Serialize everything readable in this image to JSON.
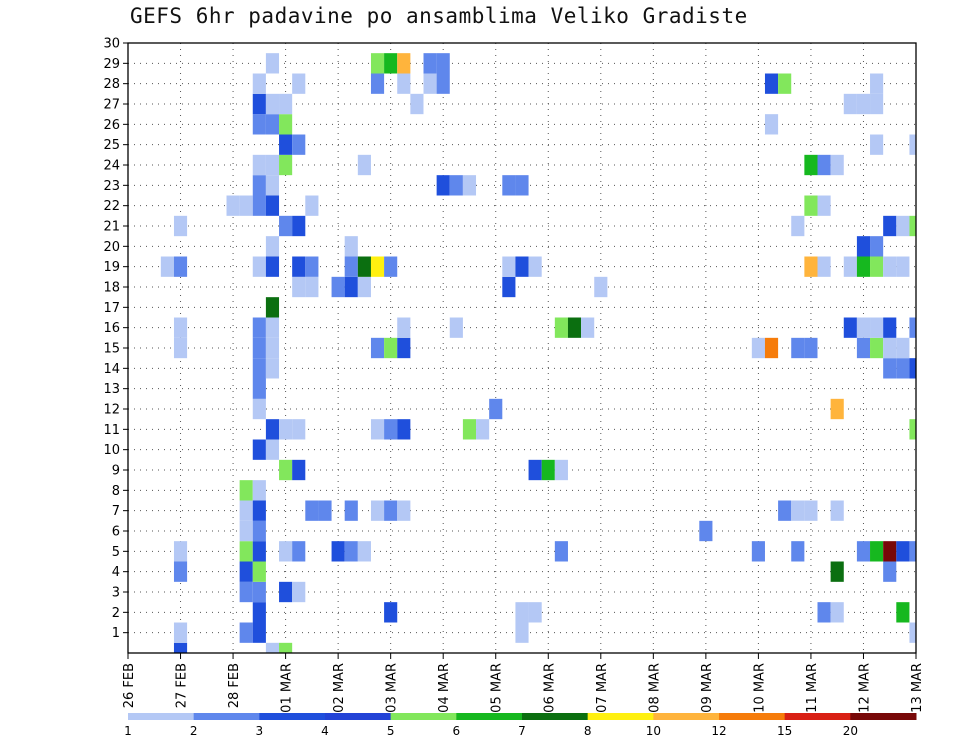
{
  "chart_data": {
    "type": "heatmap",
    "title": "GEFS 6hr padavine po ansamblima Veliko Gradiste",
    "x_tick_labels": [
      "26 FEB",
      "27 FEB",
      "28 FEB",
      "01 MAR",
      "02 MAR",
      "03 MAR",
      "04 MAR",
      "05 MAR",
      "06 MAR",
      "07 MAR",
      "08 MAR",
      "09 MAR",
      "10 MAR",
      "11 MAR",
      "12 MAR",
      "13 MAR"
    ],
    "y_tick_labels": [
      "1",
      "2",
      "3",
      "4",
      "5",
      "6",
      "7",
      "8",
      "9",
      "10",
      "11",
      "12",
      "13",
      "14",
      "15",
      "16",
      "17",
      "18",
      "19",
      "20",
      "21",
      "22",
      "23",
      "24",
      "25",
      "26",
      "27",
      "28",
      "29",
      "30"
    ],
    "xlim": [
      0,
      60
    ],
    "ylim": [
      0,
      30
    ],
    "grid": true,
    "legend_placement": "bottom",
    "colorbar": {
      "labels": [
        "1",
        "2",
        "3",
        "4",
        "5",
        "6",
        "7",
        "8",
        "10",
        "12",
        "15",
        "20"
      ],
      "colors": [
        "#b4c8f5",
        "#5f87ec",
        "#1f4fdc",
        "#2343d6",
        "#82e75c",
        "#16b81f",
        "#0b6f10",
        "#fff010",
        "#ffb43c",
        "#f67c0a",
        "#d92014",
        "#780808"
      ]
    },
    "cells": [
      {
        "x": 4,
        "y": 0,
        "v": 3
      },
      {
        "x": 11,
        "y": 0,
        "v": 1
      },
      {
        "x": 12,
        "y": 0,
        "v": 5
      },
      {
        "x": 4,
        "y": 1,
        "v": 1
      },
      {
        "x": 9,
        "y": 1,
        "v": 2
      },
      {
        "x": 10,
        "y": 1,
        "v": 3
      },
      {
        "x": 30,
        "y": 1,
        "v": 1
      },
      {
        "x": 60,
        "y": 1,
        "v": 1
      },
      {
        "x": 10,
        "y": 2,
        "v": 3
      },
      {
        "x": 20,
        "y": 2,
        "v": 3
      },
      {
        "x": 30,
        "y": 2,
        "v": 1
      },
      {
        "x": 31,
        "y": 2,
        "v": 1
      },
      {
        "x": 53,
        "y": 2,
        "v": 2
      },
      {
        "x": 54,
        "y": 2,
        "v": 1
      },
      {
        "x": 59,
        "y": 2,
        "v": 6
      },
      {
        "x": 9,
        "y": 3,
        "v": 2
      },
      {
        "x": 10,
        "y": 3,
        "v": 2
      },
      {
        "x": 12,
        "y": 3,
        "v": 3
      },
      {
        "x": 13,
        "y": 3,
        "v": 1
      },
      {
        "x": 4,
        "y": 4,
        "v": 2
      },
      {
        "x": 9,
        "y": 4,
        "v": 3
      },
      {
        "x": 10,
        "y": 4,
        "v": 5
      },
      {
        "x": 54,
        "y": 4,
        "v": 7
      },
      {
        "x": 58,
        "y": 4,
        "v": 2
      },
      {
        "x": 4,
        "y": 5,
        "v": 1
      },
      {
        "x": 9,
        "y": 5,
        "v": 5
      },
      {
        "x": 10,
        "y": 5,
        "v": 3
      },
      {
        "x": 12,
        "y": 5,
        "v": 1
      },
      {
        "x": 13,
        "y": 5,
        "v": 2
      },
      {
        "x": 16,
        "y": 5,
        "v": 3
      },
      {
        "x": 17,
        "y": 5,
        "v": 2
      },
      {
        "x": 18,
        "y": 5,
        "v": 1
      },
      {
        "x": 33,
        "y": 5,
        "v": 2
      },
      {
        "x": 48,
        "y": 5,
        "v": 2
      },
      {
        "x": 51,
        "y": 5,
        "v": 2
      },
      {
        "x": 56,
        "y": 5,
        "v": 2
      },
      {
        "x": 57,
        "y": 5,
        "v": 6
      },
      {
        "x": 58,
        "y": 5,
        "v": 20
      },
      {
        "x": 59,
        "y": 5,
        "v": 3
      },
      {
        "x": 60,
        "y": 5,
        "v": 2
      },
      {
        "x": 9,
        "y": 6,
        "v": 1
      },
      {
        "x": 10,
        "y": 6,
        "v": 2
      },
      {
        "x": 44,
        "y": 6,
        "v": 2
      },
      {
        "x": 9,
        "y": 7,
        "v": 1
      },
      {
        "x": 10,
        "y": 7,
        "v": 3
      },
      {
        "x": 14,
        "y": 7,
        "v": 2
      },
      {
        "x": 15,
        "y": 7,
        "v": 2
      },
      {
        "x": 17,
        "y": 7,
        "v": 2
      },
      {
        "x": 19,
        "y": 7,
        "v": 1
      },
      {
        "x": 20,
        "y": 7,
        "v": 2
      },
      {
        "x": 21,
        "y": 7,
        "v": 1
      },
      {
        "x": 50,
        "y": 7,
        "v": 2
      },
      {
        "x": 51,
        "y": 7,
        "v": 1
      },
      {
        "x": 52,
        "y": 7,
        "v": 1
      },
      {
        "x": 54,
        "y": 7,
        "v": 1
      },
      {
        "x": 9,
        "y": 8,
        "v": 5
      },
      {
        "x": 10,
        "y": 8,
        "v": 1
      },
      {
        "x": 12,
        "y": 9,
        "v": 5
      },
      {
        "x": 13,
        "y": 9,
        "v": 3
      },
      {
        "x": 31,
        "y": 9,
        "v": 3
      },
      {
        "x": 32,
        "y": 9,
        "v": 6
      },
      {
        "x": 33,
        "y": 9,
        "v": 1
      },
      {
        "x": 10,
        "y": 10,
        "v": 3
      },
      {
        "x": 11,
        "y": 10,
        "v": 1
      },
      {
        "x": 11,
        "y": 11,
        "v": 3
      },
      {
        "x": 12,
        "y": 11,
        "v": 1
      },
      {
        "x": 13,
        "y": 11,
        "v": 1
      },
      {
        "x": 19,
        "y": 11,
        "v": 1
      },
      {
        "x": 20,
        "y": 11,
        "v": 2
      },
      {
        "x": 21,
        "y": 11,
        "v": 3
      },
      {
        "x": 26,
        "y": 11,
        "v": 5
      },
      {
        "x": 27,
        "y": 11,
        "v": 1
      },
      {
        "x": 60,
        "y": 11,
        "v": 5
      },
      {
        "x": 10,
        "y": 12,
        "v": 1
      },
      {
        "x": 28,
        "y": 12,
        "v": 2
      },
      {
        "x": 54,
        "y": 12,
        "v": 10
      },
      {
        "x": 10,
        "y": 13,
        "v": 2
      },
      {
        "x": 10,
        "y": 14,
        "v": 2
      },
      {
        "x": 11,
        "y": 14,
        "v": 1
      },
      {
        "x": 58,
        "y": 14,
        "v": 2
      },
      {
        "x": 59,
        "y": 14,
        "v": 2
      },
      {
        "x": 60,
        "y": 14,
        "v": 3
      },
      {
        "x": 4,
        "y": 15,
        "v": 1
      },
      {
        "x": 10,
        "y": 15,
        "v": 2
      },
      {
        "x": 11,
        "y": 15,
        "v": 1
      },
      {
        "x": 19,
        "y": 15,
        "v": 2
      },
      {
        "x": 20,
        "y": 15,
        "v": 5
      },
      {
        "x": 21,
        "y": 15,
        "v": 3
      },
      {
        "x": 48,
        "y": 15,
        "v": 1
      },
      {
        "x": 49,
        "y": 15,
        "v": 12
      },
      {
        "x": 51,
        "y": 15,
        "v": 2
      },
      {
        "x": 52,
        "y": 15,
        "v": 2
      },
      {
        "x": 56,
        "y": 15,
        "v": 2
      },
      {
        "x": 57,
        "y": 15,
        "v": 5
      },
      {
        "x": 58,
        "y": 15,
        "v": 1
      },
      {
        "x": 59,
        "y": 15,
        "v": 1
      },
      {
        "x": 10,
        "y": 16,
        "v": 2
      },
      {
        "x": 11,
        "y": 16,
        "v": 1
      },
      {
        "x": 33,
        "y": 16,
        "v": 5
      },
      {
        "x": 34,
        "y": 16,
        "v": 7
      },
      {
        "x": 35,
        "y": 16,
        "v": 1
      },
      {
        "x": 55,
        "y": 16,
        "v": 3
      },
      {
        "x": 56,
        "y": 16,
        "v": 1
      },
      {
        "x": 57,
        "y": 16,
        "v": 1
      },
      {
        "x": 4,
        "y": 16,
        "v": 1
      },
      {
        "x": 21,
        "y": 16,
        "v": 1
      },
      {
        "x": 25,
        "y": 16,
        "v": 1
      },
      {
        "x": 58,
        "y": 16,
        "v": 3
      },
      {
        "x": 60,
        "y": 16,
        "v": 2
      },
      {
        "x": 11,
        "y": 17,
        "v": 7
      },
      {
        "x": 13,
        "y": 18,
        "v": 1
      },
      {
        "x": 14,
        "y": 18,
        "v": 1
      },
      {
        "x": 16,
        "y": 18,
        "v": 2
      },
      {
        "x": 17,
        "y": 18,
        "v": 3
      },
      {
        "x": 18,
        "y": 18,
        "v": 1
      },
      {
        "x": 29,
        "y": 18,
        "v": 3
      },
      {
        "x": 36,
        "y": 18,
        "v": 1
      },
      {
        "x": 3,
        "y": 19,
        "v": 1
      },
      {
        "x": 4,
        "y": 19,
        "v": 2
      },
      {
        "x": 10,
        "y": 19,
        "v": 1
      },
      {
        "x": 11,
        "y": 19,
        "v": 3
      },
      {
        "x": 13,
        "y": 19,
        "v": 3
      },
      {
        "x": 14,
        "y": 19,
        "v": 2
      },
      {
        "x": 17,
        "y": 19,
        "v": 2
      },
      {
        "x": 18,
        "y": 19,
        "v": 7
      },
      {
        "x": 19,
        "y": 19,
        "v": 8
      },
      {
        "x": 20,
        "y": 19,
        "v": 2
      },
      {
        "x": 29,
        "y": 19,
        "v": 1
      },
      {
        "x": 30,
        "y": 19,
        "v": 3
      },
      {
        "x": 31,
        "y": 19,
        "v": 1
      },
      {
        "x": 52,
        "y": 19,
        "v": 10
      },
      {
        "x": 53,
        "y": 19,
        "v": 1
      },
      {
        "x": 55,
        "y": 19,
        "v": 1
      },
      {
        "x": 56,
        "y": 19,
        "v": 6
      },
      {
        "x": 57,
        "y": 19,
        "v": 5
      },
      {
        "x": 58,
        "y": 19,
        "v": 1
      },
      {
        "x": 59,
        "y": 19,
        "v": 1
      },
      {
        "x": 11,
        "y": 20,
        "v": 1
      },
      {
        "x": 17,
        "y": 20,
        "v": 1
      },
      {
        "x": 56,
        "y": 20,
        "v": 3
      },
      {
        "x": 57,
        "y": 20,
        "v": 2
      },
      {
        "x": 4,
        "y": 21,
        "v": 1
      },
      {
        "x": 12,
        "y": 21,
        "v": 2
      },
      {
        "x": 13,
        "y": 21,
        "v": 3
      },
      {
        "x": 51,
        "y": 21,
        "v": 1
      },
      {
        "x": 58,
        "y": 21,
        "v": 3
      },
      {
        "x": 59,
        "y": 21,
        "v": 1
      },
      {
        "x": 60,
        "y": 21,
        "v": 5
      },
      {
        "x": 8,
        "y": 22,
        "v": 1
      },
      {
        "x": 9,
        "y": 22,
        "v": 1
      },
      {
        "x": 10,
        "y": 22,
        "v": 2
      },
      {
        "x": 11,
        "y": 22,
        "v": 3
      },
      {
        "x": 14,
        "y": 22,
        "v": 1
      },
      {
        "x": 52,
        "y": 22,
        "v": 5
      },
      {
        "x": 53,
        "y": 22,
        "v": 1
      },
      {
        "x": 10,
        "y": 23,
        "v": 2
      },
      {
        "x": 11,
        "y": 23,
        "v": 1
      },
      {
        "x": 24,
        "y": 23,
        "v": 3
      },
      {
        "x": 25,
        "y": 23,
        "v": 2
      },
      {
        "x": 26,
        "y": 23,
        "v": 1
      },
      {
        "x": 29,
        "y": 23,
        "v": 2
      },
      {
        "x": 30,
        "y": 23,
        "v": 2
      },
      {
        "x": 10,
        "y": 24,
        "v": 1
      },
      {
        "x": 11,
        "y": 24,
        "v": 1
      },
      {
        "x": 12,
        "y": 24,
        "v": 5
      },
      {
        "x": 18,
        "y": 24,
        "v": 1
      },
      {
        "x": 52,
        "y": 24,
        "v": 6
      },
      {
        "x": 53,
        "y": 24,
        "v": 2
      },
      {
        "x": 54,
        "y": 24,
        "v": 1
      },
      {
        "x": 12,
        "y": 25,
        "v": 3
      },
      {
        "x": 13,
        "y": 25,
        "v": 2
      },
      {
        "x": 57,
        "y": 25,
        "v": 1
      },
      {
        "x": 60,
        "y": 25,
        "v": 1
      },
      {
        "x": 10,
        "y": 26,
        "v": 2
      },
      {
        "x": 11,
        "y": 26,
        "v": 2
      },
      {
        "x": 12,
        "y": 26,
        "v": 5
      },
      {
        "x": 49,
        "y": 26,
        "v": 1
      },
      {
        "x": 10,
        "y": 27,
        "v": 3
      },
      {
        "x": 11,
        "y": 27,
        "v": 1
      },
      {
        "x": 12,
        "y": 27,
        "v": 1
      },
      {
        "x": 22,
        "y": 27,
        "v": 1
      },
      {
        "x": 55,
        "y": 27,
        "v": 1
      },
      {
        "x": 56,
        "y": 27,
        "v": 1
      },
      {
        "x": 57,
        "y": 27,
        "v": 1
      },
      {
        "x": 10,
        "y": 28,
        "v": 1
      },
      {
        "x": 13,
        "y": 28,
        "v": 1
      },
      {
        "x": 19,
        "y": 28,
        "v": 2
      },
      {
        "x": 21,
        "y": 28,
        "v": 1
      },
      {
        "x": 23,
        "y": 28,
        "v": 1
      },
      {
        "x": 24,
        "y": 28,
        "v": 2
      },
      {
        "x": 49,
        "y": 28,
        "v": 3
      },
      {
        "x": 50,
        "y": 28,
        "v": 5
      },
      {
        "x": 57,
        "y": 28,
        "v": 1
      },
      {
        "x": 11,
        "y": 29,
        "v": 1
      },
      {
        "x": 19,
        "y": 29,
        "v": 5
      },
      {
        "x": 20,
        "y": 29,
        "v": 6
      },
      {
        "x": 21,
        "y": 29,
        "v": 10
      },
      {
        "x": 23,
        "y": 29,
        "v": 2
      },
      {
        "x": 24,
        "y": 29,
        "v": 2
      }
    ]
  }
}
